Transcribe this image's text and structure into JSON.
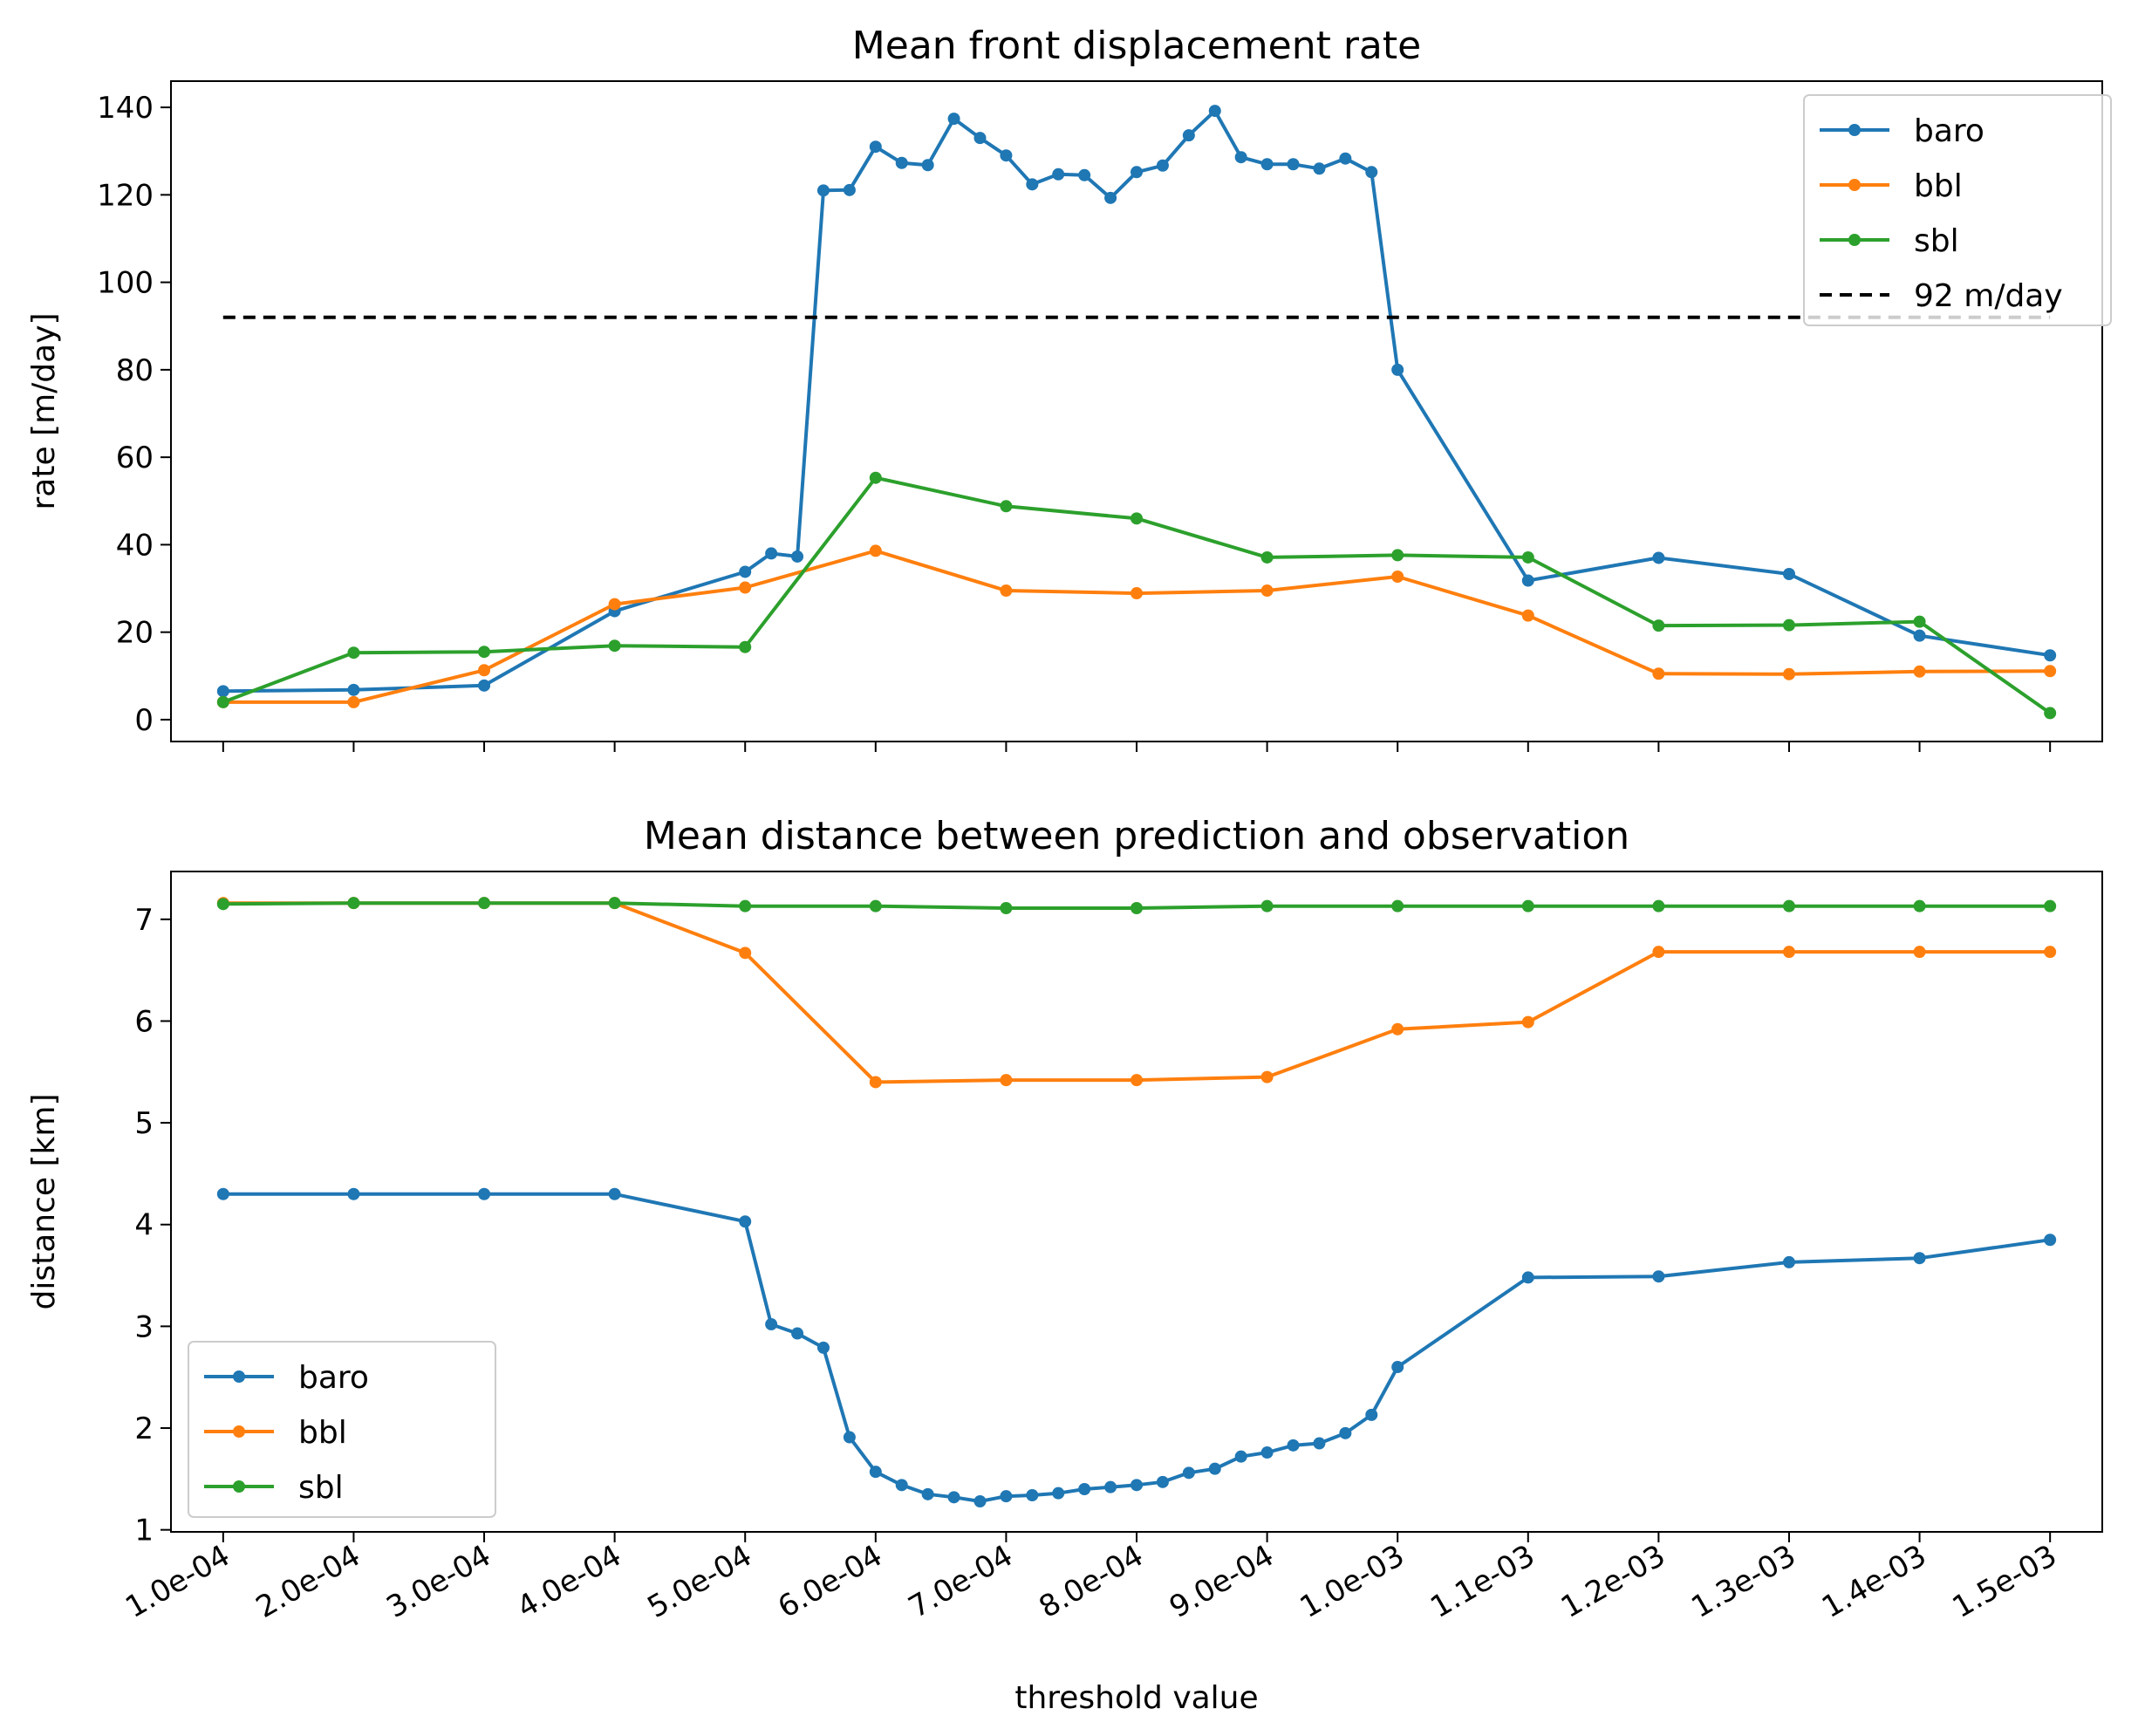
{
  "chart_data": [
    {
      "type": "line",
      "title": "Mean front displacement rate",
      "xlabel": "",
      "ylabel": "rate [m/day]",
      "ylim": [
        -5,
        146
      ],
      "yticks": [
        0,
        20,
        40,
        60,
        80,
        100,
        120,
        140
      ],
      "xlim": [
        6e-05,
        0.00154
      ],
      "xticks": [
        0.0001,
        0.0002,
        0.0003,
        0.0004,
        0.0005,
        0.0006,
        0.0007,
        0.0008,
        0.0009,
        0.001,
        0.0011,
        0.0012,
        0.0013,
        0.0014,
        0.0015
      ],
      "xtick_labels_shown": false,
      "legend_position": "top-right",
      "series": [
        {
          "name": "baro",
          "color": "#1f77b4",
          "marker": "circle",
          "x": [
            0.0001,
            0.0002,
            0.0003,
            0.0004,
            0.0005,
            0.00052,
            0.00054,
            0.00056,
            0.00058,
            0.0006,
            0.00062,
            0.00064,
            0.00066,
            0.00068,
            0.0007,
            0.00072,
            0.00074,
            0.00076,
            0.00078,
            0.0008,
            0.00082,
            0.00084,
            0.00086,
            0.00088,
            0.0009,
            0.00092,
            0.00094,
            0.00096,
            0.00098,
            0.001,
            0.0011,
            0.0012,
            0.0013,
            0.0014,
            0.0015
          ],
          "y": [
            6.5,
            6.8,
            7.8,
            24.8,
            33.8,
            38.0,
            37.3,
            121.0,
            121.1,
            131.0,
            127.3,
            126.8,
            137.4,
            133.0,
            129.0,
            122.4,
            124.7,
            124.5,
            119.3,
            125.2,
            126.7,
            133.6,
            139.2,
            128.6,
            127.0,
            127.0,
            126.0,
            128.3,
            125.2,
            80.0,
            31.8,
            37.0,
            33.3,
            19.2,
            14.7
          ]
        },
        {
          "name": "bbl",
          "color": "#ff7f0e",
          "marker": "circle",
          "x": [
            0.0001,
            0.0002,
            0.0003,
            0.0004,
            0.0005,
            0.0006,
            0.0007,
            0.0008,
            0.0009,
            0.001,
            0.0011,
            0.0012,
            0.0013,
            0.0014,
            0.0015
          ],
          "y": [
            4.0,
            4.0,
            11.3,
            26.4,
            30.2,
            38.6,
            29.5,
            28.9,
            29.5,
            32.7,
            23.8,
            10.5,
            10.4,
            11.0,
            11.1
          ]
        },
        {
          "name": "sbl",
          "color": "#2ca02c",
          "marker": "circle",
          "x": [
            0.0001,
            0.0002,
            0.0003,
            0.0004,
            0.0005,
            0.0006,
            0.0007,
            0.0008,
            0.0009,
            0.001,
            0.0011,
            0.0012,
            0.0013,
            0.0014,
            0.0015
          ],
          "y": [
            4.0,
            15.3,
            15.5,
            16.9,
            16.6,
            55.3,
            48.8,
            46.0,
            37.1,
            37.6,
            37.1,
            21.5,
            21.6,
            22.4,
            1.5
          ]
        },
        {
          "name": "92 m/day",
          "color": "#000000",
          "style": "dashed",
          "x": [
            0.0001,
            0.0015
          ],
          "y": [
            92,
            92
          ]
        }
      ]
    },
    {
      "type": "line",
      "title": "Mean distance between prediction and observation",
      "xlabel": "threshold value",
      "ylabel": "distance [km]",
      "ylim": [
        0.98,
        7.47
      ],
      "yticks": [
        1,
        2,
        3,
        4,
        5,
        6,
        7
      ],
      "xlim": [
        6e-05,
        0.00154
      ],
      "xticks": [
        0.0001,
        0.0002,
        0.0003,
        0.0004,
        0.0005,
        0.0006,
        0.0007,
        0.0008,
        0.0009,
        0.001,
        0.0011,
        0.0012,
        0.0013,
        0.0014,
        0.0015
      ],
      "xtick_labels": [
        "1.0e-04",
        "2.0e-04",
        "3.0e-04",
        "4.0e-04",
        "5.0e-04",
        "6.0e-04",
        "7.0e-04",
        "8.0e-04",
        "9.0e-04",
        "1.0e-03",
        "1.1e-03",
        "1.2e-03",
        "1.3e-03",
        "1.4e-03",
        "1.5e-03"
      ],
      "legend_position": "bottom-left",
      "series": [
        {
          "name": "baro",
          "color": "#1f77b4",
          "marker": "circle",
          "x": [
            0.0001,
            0.0002,
            0.0003,
            0.0004,
            0.0005,
            0.00052,
            0.00054,
            0.00056,
            0.00058,
            0.0006,
            0.00062,
            0.00064,
            0.00066,
            0.00068,
            0.0007,
            0.00072,
            0.00074,
            0.00076,
            0.00078,
            0.0008,
            0.00082,
            0.00084,
            0.00086,
            0.00088,
            0.0009,
            0.00092,
            0.00094,
            0.00096,
            0.00098,
            0.001,
            0.0011,
            0.0012,
            0.0013,
            0.0014,
            0.0015
          ],
          "y": [
            4.3,
            4.3,
            4.3,
            4.3,
            4.03,
            3.02,
            2.93,
            2.79,
            1.91,
            1.57,
            1.44,
            1.35,
            1.32,
            1.28,
            1.33,
            1.34,
            1.36,
            1.4,
            1.42,
            1.44,
            1.47,
            1.56,
            1.6,
            1.72,
            1.76,
            1.83,
            1.85,
            1.95,
            2.13,
            2.6,
            3.48,
            3.49,
            3.63,
            3.67,
            3.85
          ]
        },
        {
          "name": "bbl",
          "color": "#ff7f0e",
          "marker": "circle",
          "x": [
            0.0001,
            0.0002,
            0.0003,
            0.0004,
            0.0005,
            0.0006,
            0.0007,
            0.0008,
            0.0009,
            0.001,
            0.0011,
            0.0012,
            0.0013,
            0.0014,
            0.0015
          ],
          "y": [
            7.16,
            7.16,
            7.16,
            7.16,
            6.67,
            5.4,
            5.42,
            5.42,
            5.45,
            5.92,
            5.99,
            6.68,
            6.68,
            6.68,
            6.68
          ]
        },
        {
          "name": "sbl",
          "color": "#2ca02c",
          "marker": "circle",
          "x": [
            0.0001,
            0.0002,
            0.0003,
            0.0004,
            0.0005,
            0.0006,
            0.0007,
            0.0008,
            0.0009,
            0.001,
            0.0011,
            0.0012,
            0.0013,
            0.0014,
            0.0015
          ],
          "y": [
            7.15,
            7.16,
            7.16,
            7.16,
            7.13,
            7.13,
            7.11,
            7.11,
            7.13,
            7.13,
            7.13,
            7.13,
            7.13,
            7.13,
            7.13
          ]
        }
      ]
    }
  ]
}
